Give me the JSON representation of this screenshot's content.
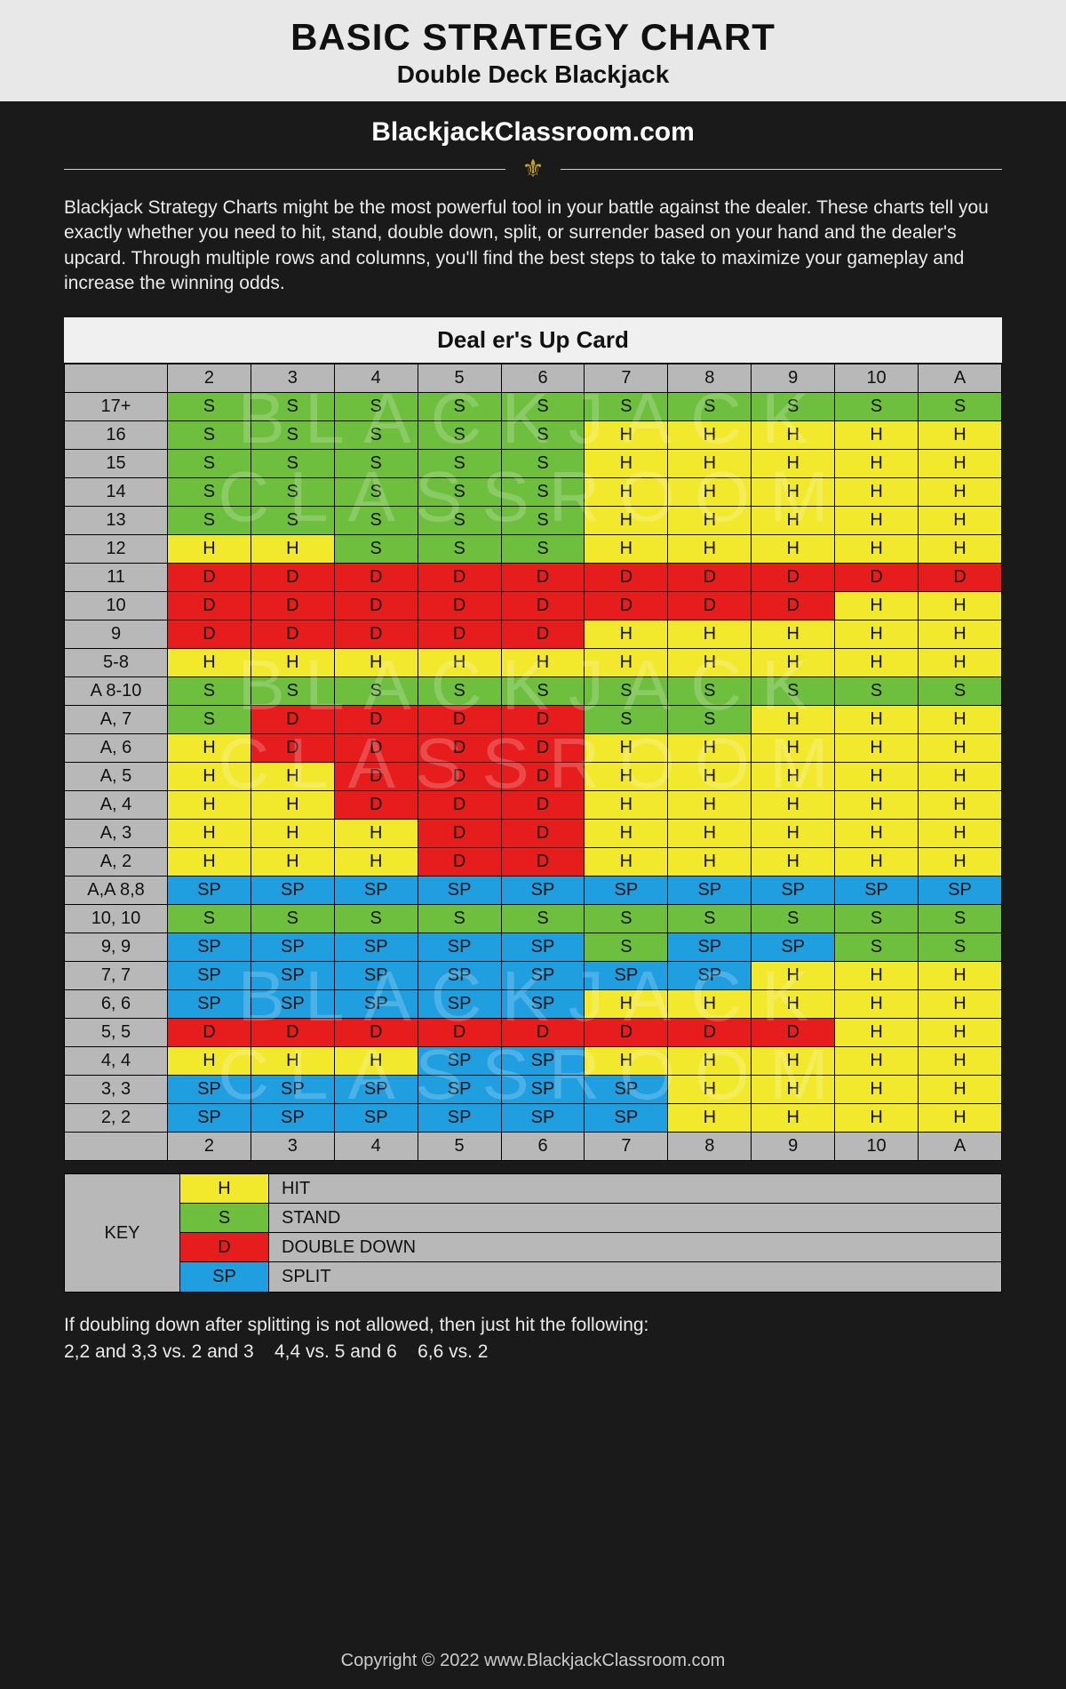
{
  "header": {
    "title": "BASIC STRATEGY CHART",
    "subtitle": "Double Deck Blackjack"
  },
  "site_url": "BlackjackClassroom.com",
  "fleur_glyph": "⚜",
  "intro_text": "Blackjack Strategy Charts might be the most powerful tool in your battle against the dealer. These charts tell you exactly whether you need to hit, stand, double down, split, or surrender based on your hand and the dealer's upcard. Through multiple rows and columns, you'll find the best steps to take to maximize your gameplay and increase the winning odds.",
  "chart": {
    "header_title": "Deal er's Up Card",
    "action_colors": {
      "S": "#6fbf3f",
      "H": "#f2e92d",
      "D": "#e71d1d",
      "SP": "#1f9ee0"
    },
    "header_bg": "#b8b8b8",
    "row_label_bg": "#b8b8b8",
    "panel_bg": "#f0f0f0",
    "border_color": "#000000",
    "dealer_cards": [
      "2",
      "3",
      "4",
      "5",
      "6",
      "7",
      "8",
      "9",
      "10",
      "A"
    ],
    "rows": [
      {
        "label": "17+",
        "cells": [
          "S",
          "S",
          "S",
          "S",
          "S",
          "S",
          "S",
          "S",
          "S",
          "S"
        ]
      },
      {
        "label": "16",
        "cells": [
          "S",
          "S",
          "S",
          "S",
          "S",
          "H",
          "H",
          "H",
          "H",
          "H"
        ]
      },
      {
        "label": "15",
        "cells": [
          "S",
          "S",
          "S",
          "S",
          "S",
          "H",
          "H",
          "H",
          "H",
          "H"
        ]
      },
      {
        "label": "14",
        "cells": [
          "S",
          "S",
          "S",
          "S",
          "S",
          "H",
          "H",
          "H",
          "H",
          "H"
        ]
      },
      {
        "label": "13",
        "cells": [
          "S",
          "S",
          "S",
          "S",
          "S",
          "H",
          "H",
          "H",
          "H",
          "H"
        ]
      },
      {
        "label": "12",
        "cells": [
          "H",
          "H",
          "S",
          "S",
          "S",
          "H",
          "H",
          "H",
          "H",
          "H"
        ]
      },
      {
        "label": "11",
        "cells": [
          "D",
          "D",
          "D",
          "D",
          "D",
          "D",
          "D",
          "D",
          "D",
          "D"
        ]
      },
      {
        "label": "10",
        "cells": [
          "D",
          "D",
          "D",
          "D",
          "D",
          "D",
          "D",
          "D",
          "H",
          "H"
        ]
      },
      {
        "label": "9",
        "cells": [
          "D",
          "D",
          "D",
          "D",
          "D",
          "H",
          "H",
          "H",
          "H",
          "H"
        ]
      },
      {
        "label": "5-8",
        "cells": [
          "H",
          "H",
          "H",
          "H",
          "H",
          "H",
          "H",
          "H",
          "H",
          "H"
        ]
      },
      {
        "label": "A 8-10",
        "cells": [
          "S",
          "S",
          "S",
          "S",
          "S",
          "S",
          "S",
          "S",
          "S",
          "S"
        ]
      },
      {
        "label": "A, 7",
        "cells": [
          "S",
          "D",
          "D",
          "D",
          "D",
          "S",
          "S",
          "H",
          "H",
          "H"
        ]
      },
      {
        "label": "A, 6",
        "cells": [
          "H",
          "D",
          "D",
          "D",
          "D",
          "H",
          "H",
          "H",
          "H",
          "H"
        ]
      },
      {
        "label": "A, 5",
        "cells": [
          "H",
          "H",
          "D",
          "D",
          "D",
          "H",
          "H",
          "H",
          "H",
          "H"
        ]
      },
      {
        "label": "A, 4",
        "cells": [
          "H",
          "H",
          "D",
          "D",
          "D",
          "H",
          "H",
          "H",
          "H",
          "H"
        ]
      },
      {
        "label": "A, 3",
        "cells": [
          "H",
          "H",
          "H",
          "D",
          "D",
          "H",
          "H",
          "H",
          "H",
          "H"
        ]
      },
      {
        "label": "A, 2",
        "cells": [
          "H",
          "H",
          "H",
          "D",
          "D",
          "H",
          "H",
          "H",
          "H",
          "H"
        ]
      },
      {
        "label": "A,A 8,8",
        "cells": [
          "SP",
          "SP",
          "SP",
          "SP",
          "SP",
          "SP",
          "SP",
          "SP",
          "SP",
          "SP"
        ]
      },
      {
        "label": "10, 10",
        "cells": [
          "S",
          "S",
          "S",
          "S",
          "S",
          "S",
          "S",
          "S",
          "S",
          "S"
        ]
      },
      {
        "label": "9, 9",
        "cells": [
          "SP",
          "SP",
          "SP",
          "SP",
          "SP",
          "S",
          "SP",
          "SP",
          "S",
          "S"
        ]
      },
      {
        "label": "7, 7",
        "cells": [
          "SP",
          "SP",
          "SP",
          "SP",
          "SP",
          "SP",
          "SP",
          "H",
          "H",
          "H"
        ]
      },
      {
        "label": "6, 6",
        "cells": [
          "SP",
          "SP",
          "SP",
          "SP",
          "SP",
          "H",
          "H",
          "H",
          "H",
          "H"
        ]
      },
      {
        "label": "5, 5",
        "cells": [
          "D",
          "D",
          "D",
          "D",
          "D",
          "D",
          "D",
          "D",
          "H",
          "H"
        ]
      },
      {
        "label": "4, 4",
        "cells": [
          "H",
          "H",
          "H",
          "SP",
          "SP",
          "H",
          "H",
          "H",
          "H",
          "H"
        ]
      },
      {
        "label": "3, 3",
        "cells": [
          "SP",
          "SP",
          "SP",
          "SP",
          "SP",
          "SP",
          "H",
          "H",
          "H",
          "H"
        ]
      },
      {
        "label": "2, 2",
        "cells": [
          "SP",
          "SP",
          "SP",
          "SP",
          "SP",
          "SP",
          "H",
          "H",
          "H",
          "H"
        ]
      }
    ]
  },
  "watermark": {
    "line1": "BLACKJACK",
    "line2": "CLASSROOM",
    "color": "rgba(255,255,255,0.20)",
    "fontsize": 80,
    "letter_spacing": 22
  },
  "key": {
    "label": "KEY",
    "items": [
      {
        "code": "H",
        "desc": "HIT",
        "color": "#f2e92d"
      },
      {
        "code": "S",
        "desc": "STAND",
        "color": "#6fbf3f"
      },
      {
        "code": "D",
        "desc": "DOUBLE DOWN",
        "color": "#e71d1d"
      },
      {
        "code": "SP",
        "desc": "SPLIT",
        "color": "#1f9ee0"
      }
    ]
  },
  "footnote": {
    "line1": "If doubling down after splitting is not allowed, then just hit the following:",
    "line2": "2,2 and 3,3 vs. 2 and 3    4,4 vs. 5 and 6    6,6 vs. 2"
  },
  "copyright": "Copyright © 2022 www.BlackjackClassroom.com"
}
